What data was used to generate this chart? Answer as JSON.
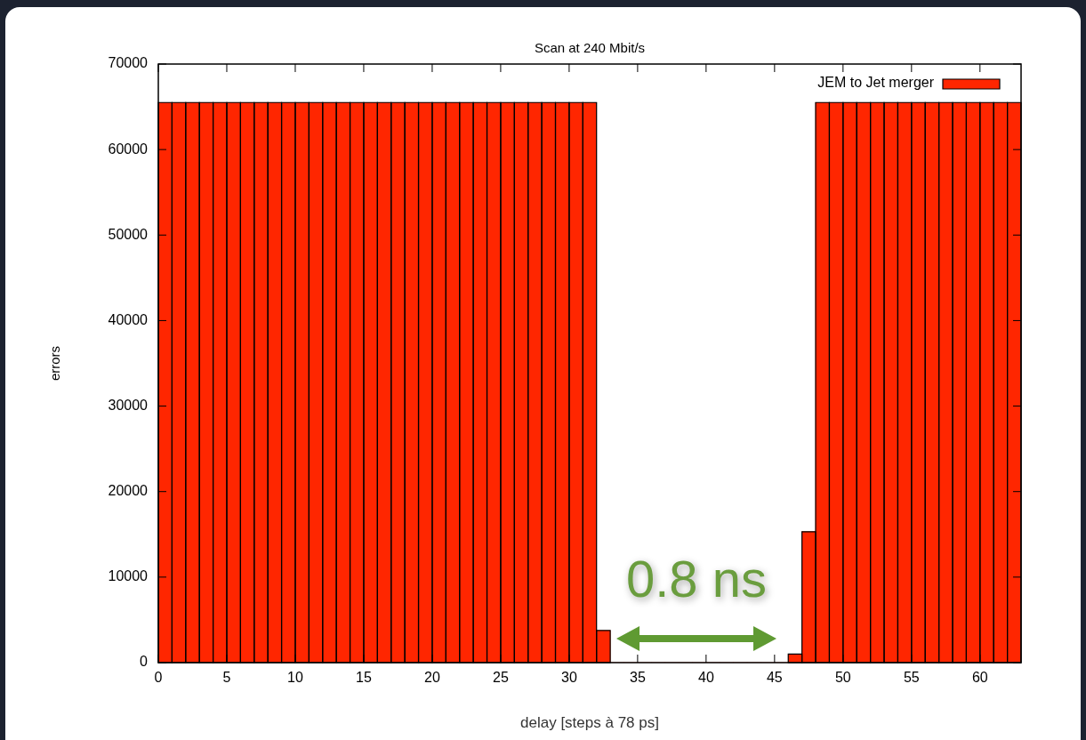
{
  "chart_data": {
    "type": "histogram",
    "title": "Scan at 240 Mbit/s",
    "xlabel": "delay [steps à 78 ps]",
    "ylabel": "errors",
    "bins": [
      0,
      1,
      2,
      3,
      4,
      5,
      6,
      7,
      8,
      9,
      10,
      11,
      12,
      13,
      14,
      15,
      16,
      17,
      18,
      19,
      20,
      21,
      22,
      23,
      24,
      25,
      26,
      27,
      28,
      29,
      30,
      31,
      32,
      33,
      34,
      35,
      36,
      37,
      38,
      39,
      40,
      41,
      42,
      43,
      44,
      45,
      46,
      47,
      48,
      49,
      50,
      51,
      52,
      53,
      54,
      55,
      56,
      57,
      58,
      59,
      60,
      61,
      62,
      63
    ],
    "series": [
      {
        "name": "JEM to Jet merger",
        "color": "#ff2600",
        "values": [
          65500,
          65500,
          65500,
          65500,
          65500,
          65500,
          65500,
          65500,
          65500,
          65500,
          65500,
          65500,
          65500,
          65500,
          65500,
          65500,
          65500,
          65500,
          65500,
          65500,
          65500,
          65500,
          65500,
          65500,
          65500,
          65500,
          65500,
          65500,
          65500,
          65500,
          65500,
          65500,
          3750,
          0,
          0,
          0,
          0,
          0,
          0,
          0,
          0,
          0,
          0,
          0,
          0,
          0,
          1000,
          15300,
          65500,
          65500,
          65500,
          65500,
          65500,
          65500,
          65500,
          65500,
          65500,
          65500,
          65500,
          65500,
          65500,
          65500,
          65500
        ]
      }
    ],
    "xlim": [
      0,
      63
    ],
    "xticks": [
      0,
      5,
      10,
      15,
      20,
      25,
      30,
      35,
      40,
      45,
      50,
      55,
      60
    ],
    "ylim": [
      0,
      70000
    ],
    "yticks": [
      0,
      10000,
      20000,
      30000,
      40000,
      50000,
      60000,
      70000
    ],
    "legend": "top right",
    "annotations": [
      "0.8 ns"
    ]
  }
}
